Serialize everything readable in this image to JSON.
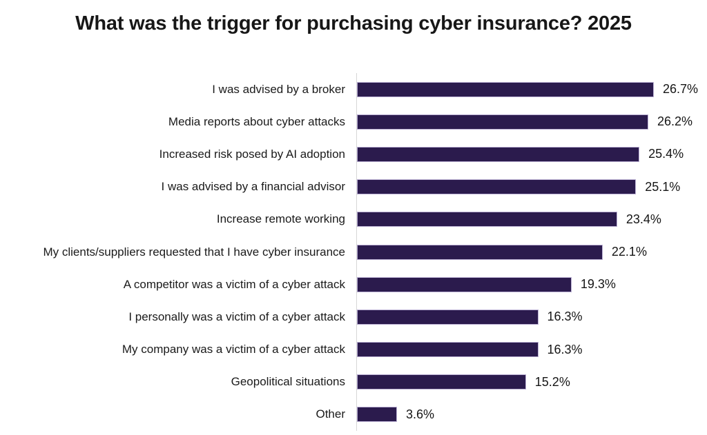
{
  "chart_data": {
    "type": "bar",
    "orientation": "horizontal",
    "title": "What was the trigger for purchasing cyber insurance? 2025",
    "categories": [
      "I was advised by a broker",
      "Media reports about cyber attacks",
      "Increased risk posed by AI adoption",
      "I was advised by a financial advisor",
      "Increase remote working",
      "My clients/suppliers requested that I have cyber insurance",
      "A competitor was a victim of a cyber attack",
      "I personally was a victim of a cyber attack",
      "My company was a victim of a cyber attack",
      "Geopolitical situations",
      "Other"
    ],
    "values": [
      26.7,
      26.2,
      25.4,
      25.1,
      23.4,
      22.1,
      19.3,
      16.3,
      16.3,
      15.2,
      3.6
    ],
    "value_labels": [
      "26.7%",
      "26.2%",
      "25.4%",
      "25.1%",
      "23.4%",
      "22.1%",
      "19.3%",
      "16.3%",
      "16.3%",
      "15.2%",
      "3.6%"
    ],
    "xlim": [
      0,
      30
    ],
    "grid": false,
    "legend": false,
    "colors": {
      "bar_fill": "#2b1b4d",
      "bar_border": "#b9aed2",
      "axis_line": "#d6d6d6",
      "title_text": "#171717",
      "label_text": "#1a1a1a"
    }
  }
}
